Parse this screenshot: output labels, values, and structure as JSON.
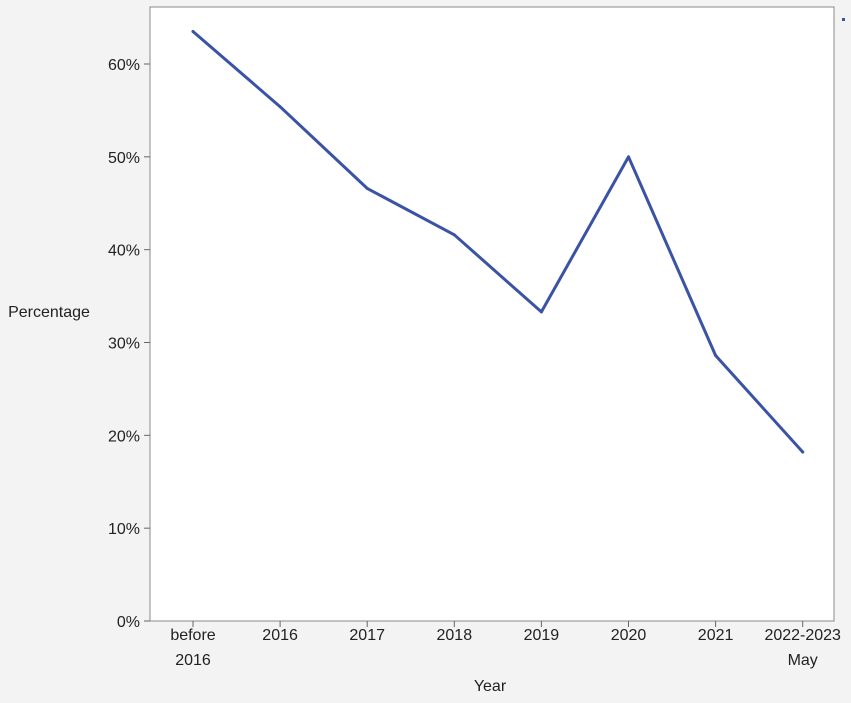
{
  "chart_data": {
    "type": "line",
    "title": "",
    "xlabel": "Year",
    "ylabel": "Percentage",
    "categories": [
      [
        "before",
        "2016"
      ],
      [
        "2016"
      ],
      [
        "2017"
      ],
      [
        "2018"
      ],
      [
        "2019"
      ],
      [
        "2020"
      ],
      [
        "2021"
      ],
      [
        "2022-2023",
        "May"
      ]
    ],
    "series": [
      {
        "values": [
          63.5,
          55.4,
          46.6,
          41.6,
          33.3,
          50.0,
          28.6,
          18.2
        ]
      }
    ],
    "ylim": [
      0,
      68
    ],
    "yticks": [
      0,
      10,
      20,
      30,
      40,
      50,
      60
    ],
    "ytick_labels": [
      "0%",
      "10%",
      "20%",
      "30%",
      "40%",
      "50%",
      "60%"
    ],
    "grid": false,
    "line_color": "#3a53a4"
  }
}
